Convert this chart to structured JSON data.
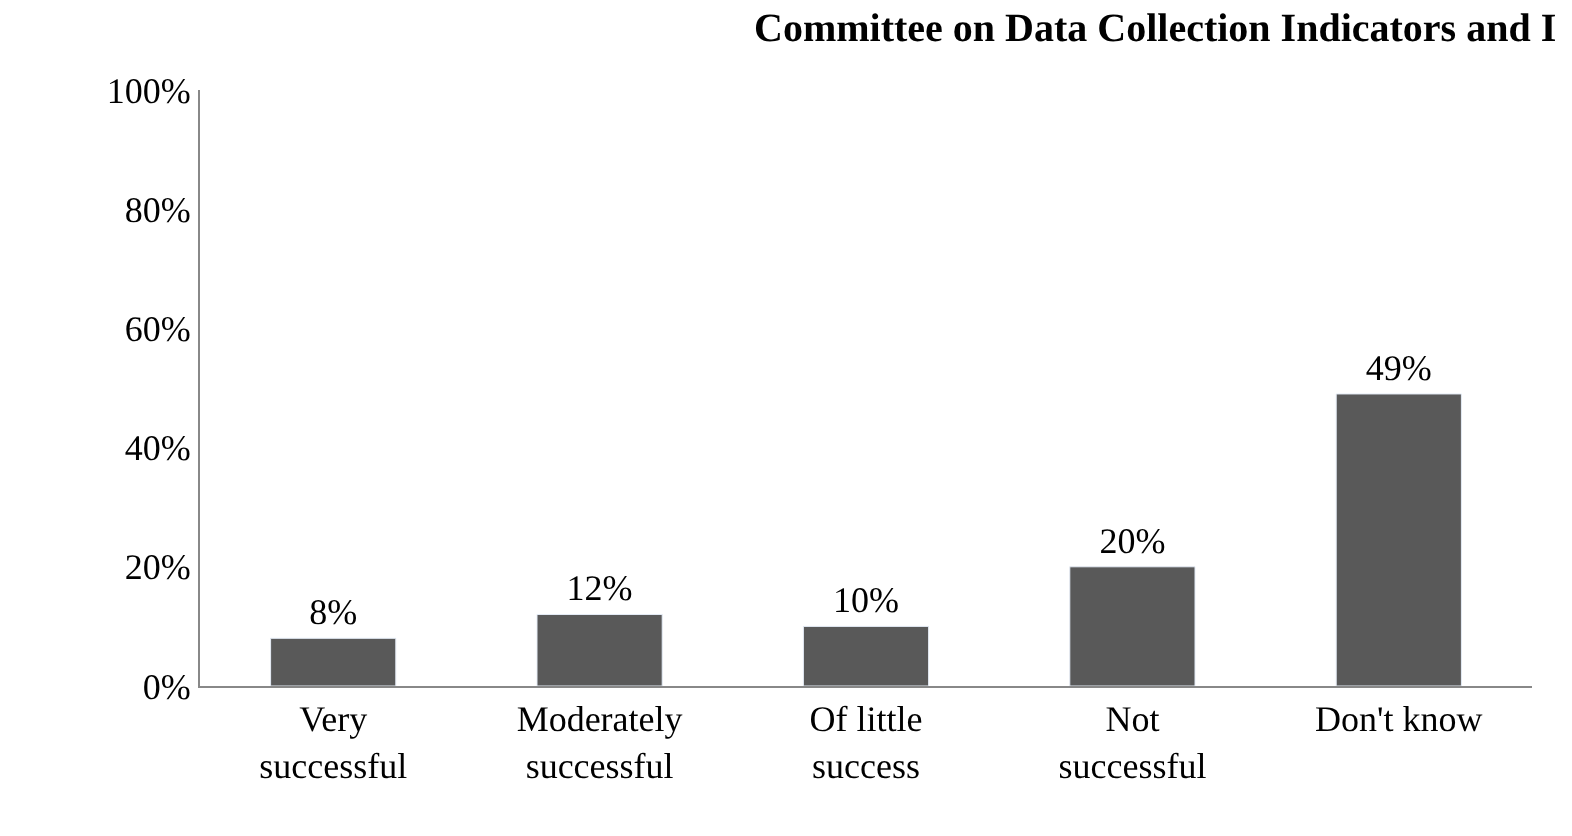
{
  "chart_data": {
    "type": "bar",
    "title": "Committee on Data Collection Indicators and I",
    "categories": [
      "Very\nsuccessful",
      "Moderately\nsuccessful",
      "Of little\nsuccess",
      "Not\nsuccessful",
      "Don't know"
    ],
    "values": [
      8,
      12,
      10,
      20,
      49
    ],
    "color": "#595959",
    "value_labels": [
      "8%",
      "12%",
      "10%",
      "20%",
      "49%"
    ],
    "ylim": [
      0,
      100
    ],
    "yticks": [
      {
        "value": 0,
        "label": "0%"
      },
      {
        "value": 20,
        "label": "20%"
      },
      {
        "value": 40,
        "label": "40%"
      },
      {
        "value": 60,
        "label": "60%"
      },
      {
        "value": 80,
        "label": "80%"
      },
      {
        "value": 100,
        "label": "100%"
      }
    ],
    "legend": false
  }
}
